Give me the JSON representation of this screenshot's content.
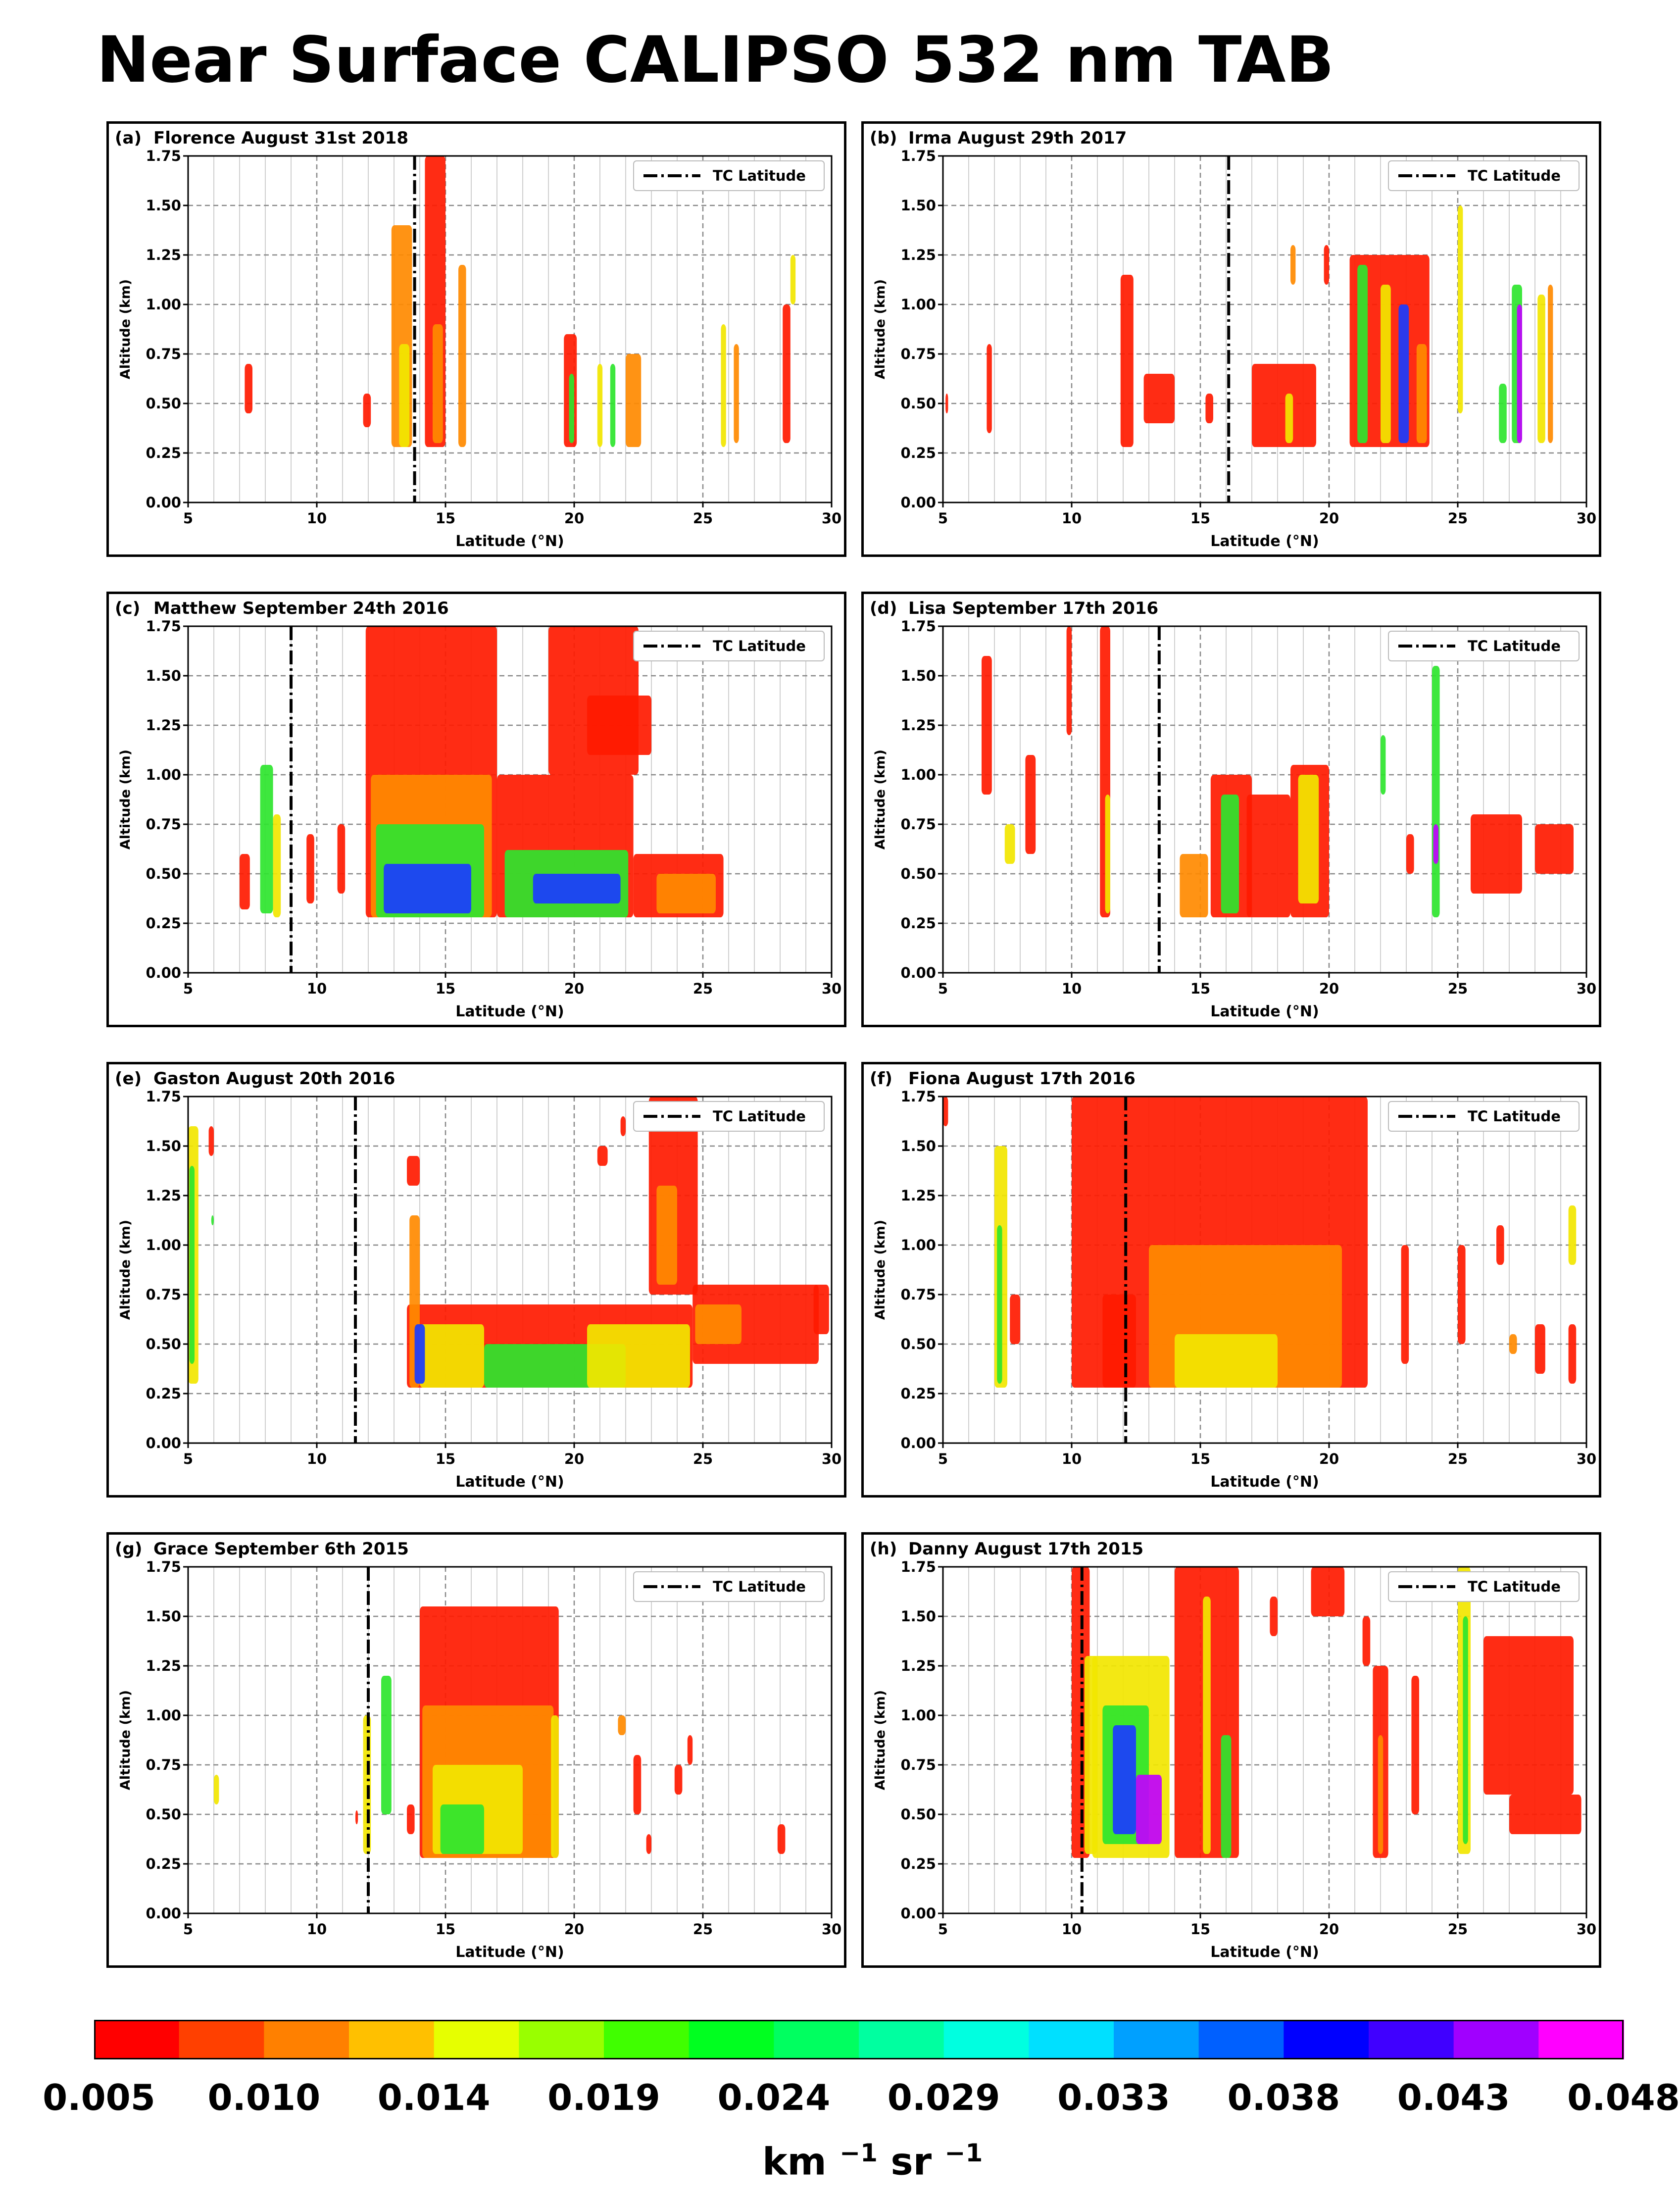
{
  "title": "Near Surface CALIPSO 532 nm TAB",
  "chart_data": [
    {
      "type": "heatmap",
      "label": "(a)",
      "title": "Florence August 31st 2018",
      "tc_lat": 13.8,
      "blobs": [
        [
          7.2,
          0.45,
          7.5,
          0.7,
          "r"
        ],
        [
          11.8,
          0.38,
          12.1,
          0.55,
          "r"
        ],
        [
          12.9,
          0.28,
          13.7,
          1.4,
          "o"
        ],
        [
          13.2,
          0.28,
          13.6,
          0.8,
          "y"
        ],
        [
          14.2,
          0.28,
          15.0,
          1.75,
          "r"
        ],
        [
          14.5,
          0.3,
          14.9,
          0.9,
          "o"
        ],
        [
          15.5,
          0.28,
          15.8,
          1.2,
          "o"
        ],
        [
          19.6,
          0.28,
          20.1,
          0.85,
          "r"
        ],
        [
          19.8,
          0.3,
          20.0,
          0.65,
          "g"
        ],
        [
          20.9,
          0.28,
          21.1,
          0.7,
          "y"
        ],
        [
          21.4,
          0.28,
          21.6,
          0.7,
          "g"
        ],
        [
          22.0,
          0.28,
          22.6,
          0.75,
          "o"
        ],
        [
          25.7,
          0.28,
          25.9,
          0.9,
          "y"
        ],
        [
          26.2,
          0.3,
          26.4,
          0.8,
          "o"
        ],
        [
          28.1,
          0.3,
          28.4,
          1.0,
          "r"
        ],
        [
          28.4,
          1.0,
          28.6,
          1.25,
          "y"
        ]
      ]
    },
    {
      "type": "heatmap",
      "label": "(b)",
      "title": "Irma August 29th 2017",
      "tc_lat": 16.1,
      "blobs": [
        [
          5.1,
          0.45,
          5.2,
          0.55,
          "r"
        ],
        [
          6.7,
          0.35,
          6.9,
          0.8,
          "r"
        ],
        [
          11.9,
          0.28,
          12.4,
          1.15,
          "r"
        ],
        [
          12.8,
          0.4,
          14.0,
          0.65,
          "r"
        ],
        [
          15.2,
          0.4,
          15.5,
          0.55,
          "r"
        ],
        [
          17.0,
          0.28,
          19.5,
          0.7,
          "r"
        ],
        [
          18.3,
          0.3,
          18.6,
          0.55,
          "y"
        ],
        [
          18.5,
          1.1,
          18.7,
          1.3,
          "o"
        ],
        [
          19.8,
          1.1,
          20.0,
          1.3,
          "r"
        ],
        [
          20.8,
          0.28,
          23.9,
          1.25,
          "r"
        ],
        [
          21.1,
          0.3,
          21.5,
          1.2,
          "g"
        ],
        [
          22.0,
          0.3,
          22.4,
          1.1,
          "y"
        ],
        [
          22.7,
          0.3,
          23.1,
          1.0,
          "b"
        ],
        [
          23.4,
          0.3,
          23.8,
          0.8,
          "o"
        ],
        [
          25.0,
          0.45,
          25.2,
          1.5,
          "y"
        ],
        [
          26.6,
          0.3,
          26.9,
          0.6,
          "g"
        ],
        [
          27.1,
          0.3,
          27.5,
          1.1,
          "g"
        ],
        [
          27.3,
          0.3,
          27.5,
          1.0,
          "m"
        ],
        [
          28.1,
          0.3,
          28.4,
          1.05,
          "y"
        ],
        [
          28.5,
          0.3,
          28.7,
          1.1,
          "o"
        ]
      ]
    },
    {
      "type": "heatmap",
      "label": "(c)",
      "title": "Matthew September 24th 2016",
      "tc_lat": 9.0,
      "blobs": [
        [
          7.0,
          0.32,
          7.4,
          0.6,
          "r"
        ],
        [
          7.8,
          0.3,
          8.3,
          1.05,
          "g"
        ],
        [
          8.3,
          0.28,
          8.6,
          0.8,
          "y"
        ],
        [
          9.6,
          0.35,
          9.9,
          0.7,
          "r"
        ],
        [
          10.8,
          0.4,
          11.1,
          0.75,
          "r"
        ],
        [
          11.9,
          0.28,
          17.0,
          1.75,
          "r"
        ],
        [
          12.1,
          0.28,
          16.8,
          1.0,
          "o"
        ],
        [
          12.3,
          0.28,
          16.5,
          0.75,
          "g"
        ],
        [
          12.6,
          0.3,
          16.0,
          0.55,
          "b"
        ],
        [
          17.0,
          0.28,
          22.3,
          1.0,
          "r"
        ],
        [
          17.3,
          0.28,
          22.1,
          0.62,
          "g"
        ],
        [
          18.4,
          0.35,
          21.8,
          0.5,
          "b"
        ],
        [
          19.0,
          1.0,
          22.5,
          1.75,
          "r"
        ],
        [
          20.5,
          1.1,
          23.0,
          1.4,
          "r"
        ],
        [
          22.3,
          0.28,
          25.8,
          0.6,
          "r"
        ],
        [
          23.2,
          0.3,
          25.5,
          0.5,
          "o"
        ]
      ]
    },
    {
      "type": "heatmap",
      "label": "(d)",
      "title": "Lisa September 17th 2016",
      "tc_lat": 13.4,
      "blobs": [
        [
          6.5,
          0.9,
          6.9,
          1.6,
          "r"
        ],
        [
          7.4,
          0.55,
          7.8,
          0.75,
          "y"
        ],
        [
          8.2,
          0.6,
          8.6,
          1.1,
          "r"
        ],
        [
          9.8,
          1.2,
          10.0,
          1.75,
          "r"
        ],
        [
          11.1,
          0.28,
          11.5,
          1.75,
          "r"
        ],
        [
          11.3,
          0.3,
          11.5,
          0.9,
          "y"
        ],
        [
          14.2,
          0.28,
          15.3,
          0.6,
          "o"
        ],
        [
          15.4,
          0.28,
          17.0,
          1.0,
          "r"
        ],
        [
          15.8,
          0.3,
          16.5,
          0.9,
          "g"
        ],
        [
          16.8,
          0.28,
          18.5,
          0.9,
          "r"
        ],
        [
          18.5,
          0.28,
          20.0,
          1.05,
          "r"
        ],
        [
          18.8,
          0.35,
          19.6,
          1.0,
          "y"
        ],
        [
          22.0,
          0.9,
          22.2,
          1.2,
          "g"
        ],
        [
          23.0,
          0.5,
          23.3,
          0.7,
          "r"
        ],
        [
          24.0,
          0.28,
          24.3,
          1.55,
          "g"
        ],
        [
          24.05,
          0.55,
          24.25,
          0.75,
          "m"
        ],
        [
          25.5,
          0.4,
          27.5,
          0.8,
          "r"
        ],
        [
          28.0,
          0.5,
          29.5,
          0.75,
          "r"
        ]
      ]
    },
    {
      "type": "heatmap",
      "label": "(e)",
      "title": "Gaston August 20th 2016",
      "tc_lat": 11.5,
      "blobs": [
        [
          5.0,
          0.3,
          5.4,
          1.6,
          "y"
        ],
        [
          5.05,
          0.4,
          5.25,
          1.4,
          "g"
        ],
        [
          5.8,
          1.45,
          6.0,
          1.6,
          "r"
        ],
        [
          5.9,
          1.1,
          6.0,
          1.15,
          "g"
        ],
        [
          13.5,
          1.3,
          14.0,
          1.45,
          "r"
        ],
        [
          13.5,
          0.28,
          24.6,
          0.7,
          "r"
        ],
        [
          13.6,
          0.28,
          14.0,
          1.15,
          "o"
        ],
        [
          14.0,
          0.28,
          16.5,
          0.6,
          "y"
        ],
        [
          13.8,
          0.3,
          14.2,
          0.6,
          "b"
        ],
        [
          16.5,
          0.28,
          22.0,
          0.5,
          "g"
        ],
        [
          20.5,
          0.28,
          24.5,
          0.6,
          "y"
        ],
        [
          22.9,
          0.75,
          24.8,
          1.75,
          "r"
        ],
        [
          23.2,
          0.8,
          24.0,
          1.3,
          "o"
        ],
        [
          24.6,
          0.4,
          29.5,
          0.8,
          "r"
        ],
        [
          24.7,
          0.5,
          26.5,
          0.7,
          "o"
        ],
        [
          29.3,
          0.55,
          29.9,
          0.8,
          "r"
        ],
        [
          20.9,
          1.4,
          21.3,
          1.5,
          "r"
        ],
        [
          21.8,
          1.55,
          22.0,
          1.65,
          "r"
        ]
      ]
    },
    {
      "type": "heatmap",
      "label": "(f)",
      "title": "Fiona August 17th 2016",
      "tc_lat": 12.1,
      "blobs": [
        [
          5.0,
          1.6,
          5.2,
          1.75,
          "r"
        ],
        [
          7.0,
          0.28,
          7.5,
          1.5,
          "y"
        ],
        [
          7.1,
          0.3,
          7.3,
          1.1,
          "g"
        ],
        [
          7.6,
          0.5,
          8.0,
          0.75,
          "r"
        ],
        [
          10.0,
          0.28,
          21.5,
          1.75,
          "r"
        ],
        [
          11.2,
          0.28,
          12.5,
          0.75,
          "r"
        ],
        [
          13.0,
          0.28,
          20.5,
          1.0,
          "o"
        ],
        [
          14.0,
          0.28,
          18.0,
          0.55,
          "y"
        ],
        [
          22.8,
          0.4,
          23.1,
          1.0,
          "r"
        ],
        [
          25.0,
          0.5,
          25.3,
          1.0,
          "r"
        ],
        [
          26.5,
          0.9,
          26.8,
          1.1,
          "r"
        ],
        [
          27.0,
          0.45,
          27.3,
          0.55,
          "o"
        ],
        [
          28.0,
          0.35,
          28.4,
          0.6,
          "r"
        ],
        [
          29.3,
          0.3,
          29.6,
          0.6,
          "r"
        ],
        [
          29.3,
          0.9,
          29.6,
          1.2,
          "y"
        ]
      ]
    },
    {
      "type": "heatmap",
      "label": "(g)",
      "title": "Grace September 6th 2015",
      "tc_lat": 12.0,
      "blobs": [
        [
          6.0,
          0.55,
          6.2,
          0.7,
          "y"
        ],
        [
          11.5,
          0.45,
          11.6,
          0.52,
          "r"
        ],
        [
          11.8,
          0.3,
          12.1,
          1.0,
          "y"
        ],
        [
          12.5,
          0.5,
          12.9,
          1.2,
          "g"
        ],
        [
          13.5,
          0.4,
          13.8,
          0.55,
          "r"
        ],
        [
          14.0,
          0.28,
          19.4,
          1.55,
          "r"
        ],
        [
          14.1,
          0.28,
          19.2,
          1.05,
          "o"
        ],
        [
          14.5,
          0.3,
          18.0,
          0.75,
          "y"
        ],
        [
          14.8,
          0.3,
          16.5,
          0.55,
          "g"
        ],
        [
          19.1,
          0.28,
          19.4,
          1.0,
          "y"
        ],
        [
          21.7,
          0.9,
          22.0,
          1.0,
          "o"
        ],
        [
          22.3,
          0.5,
          22.6,
          0.8,
          "r"
        ],
        [
          22.8,
          0.3,
          23.0,
          0.4,
          "r"
        ],
        [
          23.9,
          0.6,
          24.2,
          0.75,
          "r"
        ],
        [
          24.4,
          0.75,
          24.6,
          0.9,
          "r"
        ],
        [
          27.9,
          0.3,
          28.2,
          0.45,
          "r"
        ]
      ]
    },
    {
      "type": "heatmap",
      "label": "(h)",
      "title": "Danny August 17th 2015",
      "tc_lat": 10.4,
      "blobs": [
        [
          10.0,
          0.28,
          10.7,
          1.75,
          "r"
        ],
        [
          10.5,
          0.3,
          11.0,
          1.3,
          "y"
        ],
        [
          10.8,
          0.28,
          13.8,
          1.3,
          "y"
        ],
        [
          11.2,
          0.35,
          13.0,
          1.05,
          "g"
        ],
        [
          11.6,
          0.4,
          12.5,
          0.95,
          "b"
        ],
        [
          12.5,
          0.35,
          13.5,
          0.7,
          "m"
        ],
        [
          14.0,
          0.28,
          16.5,
          1.75,
          "r"
        ],
        [
          15.1,
          0.3,
          15.4,
          1.6,
          "y"
        ],
        [
          15.8,
          0.28,
          16.2,
          0.9,
          "g"
        ],
        [
          17.7,
          1.4,
          18.0,
          1.6,
          "r"
        ],
        [
          19.3,
          1.5,
          20.6,
          1.75,
          "r"
        ],
        [
          21.3,
          1.25,
          21.6,
          1.5,
          "r"
        ],
        [
          21.7,
          0.28,
          22.3,
          1.25,
          "r"
        ],
        [
          21.9,
          0.3,
          22.1,
          0.9,
          "o"
        ],
        [
          23.2,
          0.5,
          23.5,
          1.2,
          "r"
        ],
        [
          25.0,
          0.3,
          25.5,
          1.75,
          "y"
        ],
        [
          25.2,
          0.35,
          25.4,
          1.5,
          "g"
        ],
        [
          26.0,
          0.6,
          29.5,
          1.4,
          "r"
        ],
        [
          27.0,
          0.4,
          29.8,
          0.6,
          "r"
        ]
      ]
    }
  ],
  "xlabel": "Latitude (°N)",
  "ylabel": "Altitude (km)",
  "legend_label": "TC Latitude",
  "xlim": [
    5,
    30
  ],
  "ylim": [
    0.0,
    1.75
  ],
  "x_ticks": [
    "5",
    "10",
    "15",
    "20",
    "25",
    "30"
  ],
  "y_ticks": [
    "0.00",
    "0.25",
    "0.50",
    "0.75",
    "1.00",
    "1.25",
    "1.50",
    "1.75"
  ],
  "colorbar": {
    "colors": [
      "#ff0000",
      "#ff4000",
      "#ff8000",
      "#ffc000",
      "#e6ff00",
      "#99ff00",
      "#40ff00",
      "#00ff20",
      "#00ff60",
      "#00ffa0",
      "#00ffe0",
      "#00e0ff",
      "#00a0ff",
      "#0060ff",
      "#0000ff",
      "#4000ff",
      "#a000ff",
      "#ff00ff"
    ],
    "tick_labels": [
      "0.005",
      "0.010",
      "0.014",
      "0.019",
      "0.024",
      "0.029",
      "0.033",
      "0.038",
      "0.043",
      "0.048"
    ],
    "units": "km",
    "units_exp1": "−1",
    "units_mid": "sr",
    "units_exp2": "−1"
  },
  "palette": {
    "r": "#ff1a00",
    "o": "#ff8a00",
    "y": "#f2e600",
    "g": "#2ee52e",
    "b": "#1a3cff",
    "m": "#c000ff"
  }
}
